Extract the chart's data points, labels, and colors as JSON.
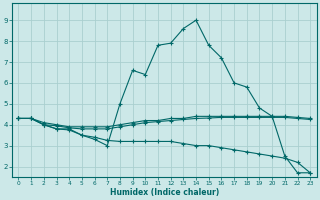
{
  "xlabel": "Humidex (Indice chaleur)",
  "bg_color": "#cce8e8",
  "grid_color": "#aacfcf",
  "line_color": "#006868",
  "xlim": [
    -0.5,
    23.5
  ],
  "ylim": [
    1.5,
    9.8
  ],
  "yticks": [
    2,
    3,
    4,
    5,
    6,
    7,
    8,
    9
  ],
  "xticks": [
    0,
    1,
    2,
    3,
    4,
    5,
    6,
    7,
    8,
    9,
    10,
    11,
    12,
    13,
    14,
    15,
    16,
    17,
    18,
    19,
    20,
    21,
    22,
    23
  ],
  "series": [
    {
      "x": [
        0,
        1,
        2,
        3,
        4,
        5,
        6,
        7,
        8,
        9,
        10,
        11,
        12,
        13,
        14,
        15,
        16,
        17,
        18,
        19,
        20,
        21,
        22,
        23
      ],
      "y": [
        4.3,
        4.3,
        4.0,
        3.8,
        3.8,
        3.5,
        3.3,
        3.0,
        5.0,
        6.6,
        6.4,
        7.8,
        7.9,
        8.6,
        9.0,
        7.8,
        7.2,
        6.0,
        5.8,
        4.8,
        4.4,
        2.5,
        1.7,
        1.7
      ]
    },
    {
      "x": [
        0,
        1,
        2,
        3,
        4,
        5,
        6,
        7,
        8,
        9,
        10,
        11,
        12,
        13,
        14,
        15,
        16,
        17,
        18,
        19,
        20,
        21,
        22,
        23
      ],
      "y": [
        4.3,
        4.3,
        4.1,
        4.0,
        3.9,
        3.9,
        3.9,
        3.9,
        4.0,
        4.1,
        4.2,
        4.2,
        4.3,
        4.3,
        4.4,
        4.4,
        4.4,
        4.4,
        4.4,
        4.4,
        4.4,
        4.4,
        4.35,
        4.3
      ]
    },
    {
      "x": [
        0,
        1,
        2,
        3,
        4,
        5,
        6,
        7,
        8,
        9,
        10,
        11,
        12,
        13,
        14,
        15,
        16,
        17,
        18,
        19,
        20,
        21,
        22,
        23
      ],
      "y": [
        4.3,
        4.3,
        4.0,
        3.95,
        3.85,
        3.8,
        3.8,
        3.8,
        3.9,
        4.0,
        4.1,
        4.15,
        4.2,
        4.25,
        4.3,
        4.32,
        4.35,
        4.35,
        4.35,
        4.35,
        4.35,
        4.35,
        4.3,
        4.25
      ]
    },
    {
      "x": [
        0,
        1,
        2,
        3,
        4,
        5,
        6,
        7,
        8,
        9,
        10,
        11,
        12,
        13,
        14,
        15,
        16,
        17,
        18,
        19,
        20,
        21,
        22,
        23
      ],
      "y": [
        4.3,
        4.3,
        4.0,
        3.8,
        3.75,
        3.5,
        3.4,
        3.25,
        3.2,
        3.2,
        3.2,
        3.2,
        3.2,
        3.1,
        3.0,
        3.0,
        2.9,
        2.8,
        2.7,
        2.6,
        2.5,
        2.4,
        2.2,
        1.7
      ]
    }
  ]
}
